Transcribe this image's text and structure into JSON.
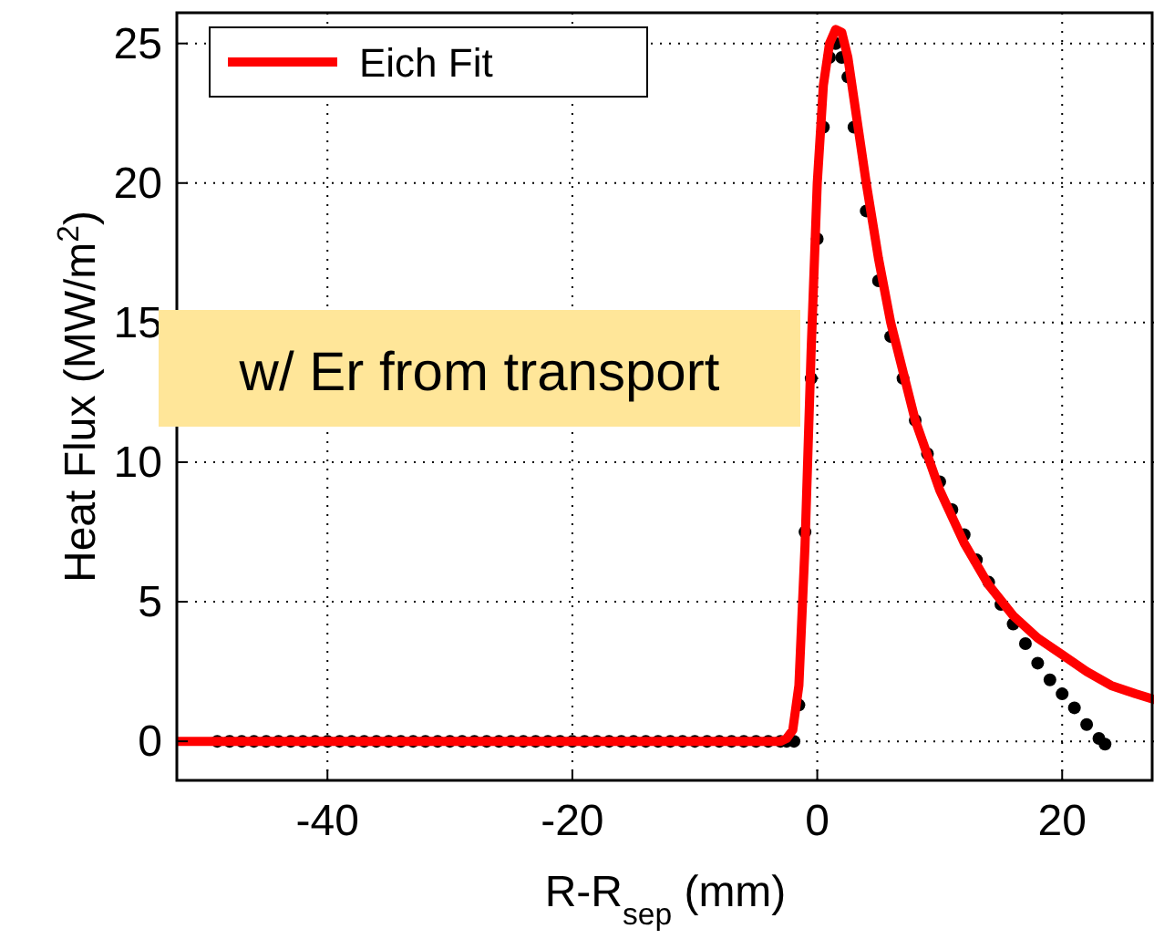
{
  "chart_data": {
    "type": "scatter",
    "xlabel": "R-R$_{sep}$ (mm)",
    "ylabel": "Heat Flux (MW/m$^{2}$)",
    "annotations": [
      "w/ Er from transport"
    ],
    "xlim": [
      -52.3,
      27.5
    ],
    "ylim": [
      -1.4,
      26.1
    ],
    "xticks": [
      -40,
      -20,
      0,
      20
    ],
    "yticks": [
      0,
      5,
      10,
      15,
      20,
      25
    ],
    "grid": true,
    "legend": "top left",
    "series": [
      {
        "color": "#000000",
        "marker": "circle",
        "x": [
          -49,
          -48,
          -47,
          -46,
          -45,
          -44,
          -43,
          -42,
          -41,
          -40,
          -39,
          -38,
          -37,
          -36,
          -35,
          -34,
          -33,
          -32,
          -31,
          -30,
          -29,
          -28,
          -27,
          -26,
          -25,
          -24,
          -23,
          -22,
          -21,
          -20,
          -19,
          -18,
          -17,
          -16,
          -15,
          -14,
          -13,
          -12,
          -11,
          -10,
          -9,
          -8,
          -7,
          -6,
          -5,
          -4,
          -3,
          -2.5,
          -1.9,
          -1.5,
          -1,
          -0.5,
          0,
          0.5,
          1,
          1.5,
          2,
          2.5,
          3,
          4,
          5,
          6,
          7,
          8,
          9,
          10,
          11,
          12,
          13,
          14,
          15,
          16,
          17,
          18,
          19,
          20,
          21,
          22,
          23,
          23.5
        ],
        "values": [
          0,
          0,
          0,
          0,
          0,
          0,
          0,
          0,
          0,
          0,
          0,
          0,
          0,
          0,
          0,
          0,
          0,
          0,
          0,
          0,
          0,
          0,
          0,
          0,
          0,
          0,
          0,
          0,
          0,
          0,
          0,
          0,
          0,
          0,
          0,
          0,
          0,
          0,
          0,
          0,
          0,
          0,
          0,
          0,
          0,
          0,
          0,
          0,
          0,
          1.3,
          7.5,
          13,
          18,
          22,
          24.5,
          25,
          24.5,
          23.8,
          22,
          19,
          16.5,
          14.5,
          13,
          11.5,
          10.3,
          9.3,
          8.3,
          7.4,
          6.5,
          5.7,
          4.9,
          4.2,
          3.5,
          2.8,
          2.2,
          1.7,
          1.2,
          0.6,
          0.1,
          -0.1
        ]
      },
      {
        "type": "line",
        "name": "Eich Fit",
        "color": "#ff0000",
        "line_style": "solid",
        "marker": "none",
        "x": [
          -52.3,
          -3,
          -2.5,
          -2,
          -1.5,
          -1,
          -0.5,
          0,
          0.5,
          1,
          1.5,
          2,
          2.5,
          3,
          4,
          5,
          6,
          8,
          10,
          12,
          14,
          16,
          18,
          20,
          22,
          24,
          26,
          27.5
        ],
        "values": [
          0,
          0,
          0.1,
          0.4,
          2,
          7,
          14,
          20,
          23.5,
          25,
          25.5,
          25.4,
          24.5,
          23,
          20,
          17.3,
          15,
          11.5,
          9,
          7.1,
          5.6,
          4.5,
          3.7,
          3.1,
          2.5,
          2,
          1.7,
          1.5
        ]
      }
    ]
  }
}
